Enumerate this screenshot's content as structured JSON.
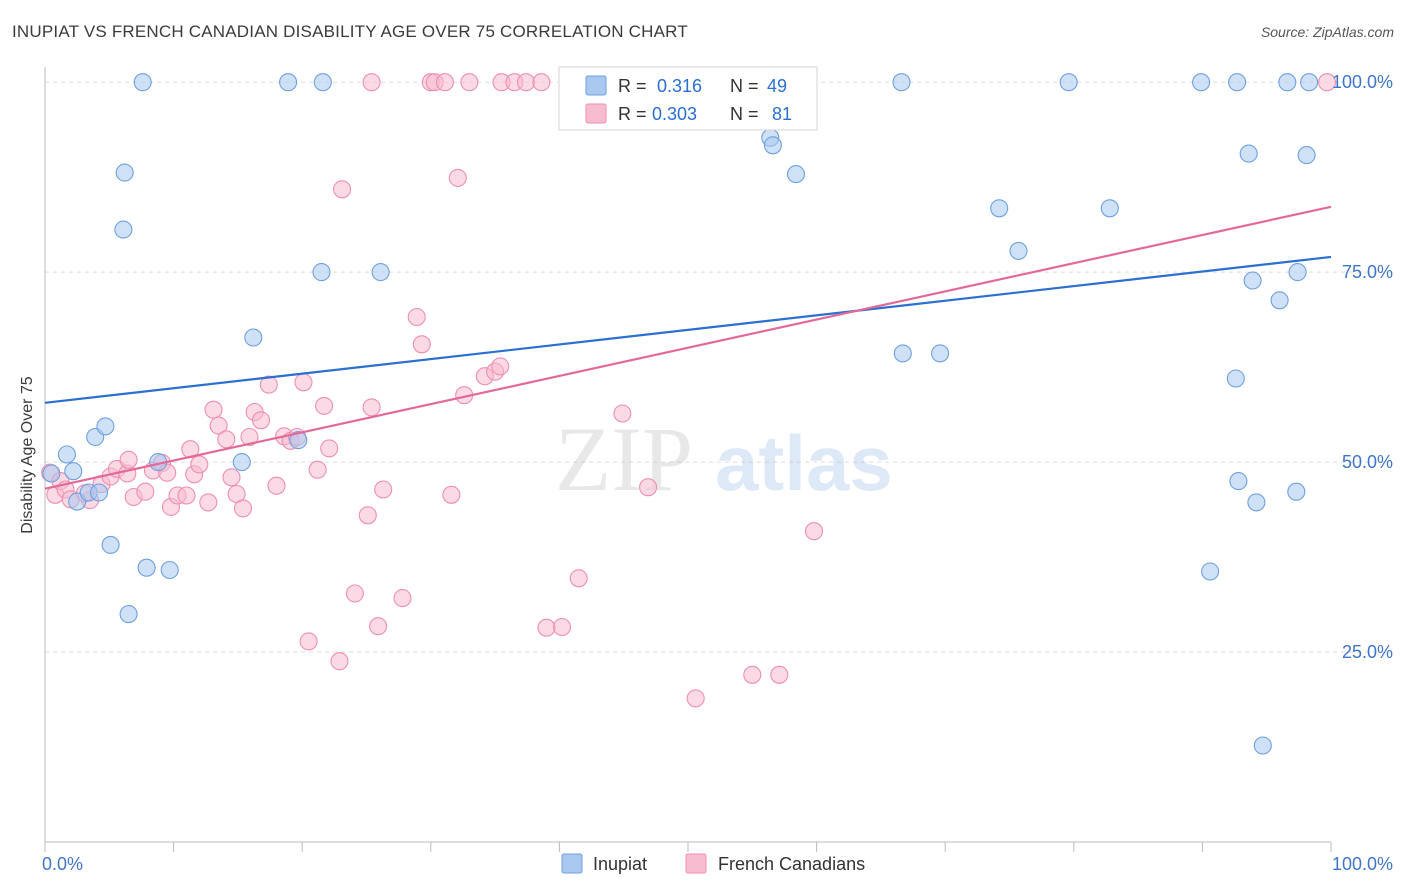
{
  "title": "INUPIAT VS FRENCH CANADIAN DISABILITY AGE OVER 75 CORRELATION CHART",
  "source": "Source: ZipAtlas.com",
  "watermark": {
    "zip": "ZIP",
    "atlas": "atlas"
  },
  "colors": {
    "blue_fill": "#a8c8f0",
    "blue_stroke": "#6fa0e0",
    "blue_line": "#2b6fd0",
    "pink_fill": "#f7bcd0",
    "pink_stroke": "#ee8fb0",
    "pink_line": "#e36a98",
    "axis_value": "#3f76c8",
    "grid": "#dddddd"
  },
  "legend": {
    "rows": [
      {
        "r_label": "R =",
        "r_value": "0.316",
        "n_label": "N =",
        "n_value": "49"
      },
      {
        "r_label": "R =",
        "r_value": "0.303",
        "n_label": "N =",
        "n_value": "81"
      }
    ]
  },
  "bottom_legend": {
    "items": [
      "Inupiat",
      "French Canadians"
    ]
  },
  "chart_data": {
    "type": "scatter",
    "title": "INUPIAT VS FRENCH CANADIAN DISABILITY AGE OVER 75 CORRELATION CHART",
    "xlabel": "",
    "ylabel": "Disability Age Over 75",
    "xlim": [
      0,
      100
    ],
    "ylim": [
      0,
      102
    ],
    "x_tick_labels": [
      "0.0%",
      "100.0%"
    ],
    "y_tick_labels": [
      "25.0%",
      "50.0%",
      "75.0%",
      "100.0%"
    ],
    "y_ticks": [
      25,
      50,
      75,
      100
    ],
    "grid": true,
    "series": [
      {
        "name": "Inupiat",
        "color": "blue",
        "trend": {
          "x": [
            0,
            100
          ],
          "y": [
            57.8,
            77.0
          ]
        },
        "points": [
          [
            0.5,
            48.5
          ],
          [
            1.7,
            51.0
          ],
          [
            2.2,
            48.8
          ],
          [
            2.5,
            44.8
          ],
          [
            3.4,
            46.0
          ],
          [
            3.9,
            53.3
          ],
          [
            4.2,
            46.0
          ],
          [
            4.7,
            54.7
          ],
          [
            5.1,
            39.1
          ],
          [
            6.1,
            80.6
          ],
          [
            6.2,
            88.1
          ],
          [
            7.6,
            100.0
          ],
          [
            7.9,
            36.1
          ],
          [
            6.5,
            30.0
          ],
          [
            9.7,
            35.8
          ],
          [
            8.8,
            50.0
          ],
          [
            15.3,
            50.0
          ],
          [
            16.2,
            66.4
          ],
          [
            18.9,
            100.0
          ],
          [
            21.6,
            100.0
          ],
          [
            21.5,
            75.0
          ],
          [
            26.1,
            75.0
          ],
          [
            19.7,
            52.9
          ],
          [
            52.4,
            95.6
          ],
          [
            56.4,
            92.7
          ],
          [
            56.6,
            91.7
          ],
          [
            58.4,
            87.9
          ],
          [
            66.7,
            64.3
          ],
          [
            69.6,
            64.3
          ],
          [
            74.2,
            83.4
          ],
          [
            75.7,
            77.8
          ],
          [
            79.6,
            100.0
          ],
          [
            82.8,
            83.4
          ],
          [
            89.9,
            100.0
          ],
          [
            90.6,
            35.6
          ],
          [
            92.6,
            61.0
          ],
          [
            92.8,
            47.5
          ],
          [
            93.6,
            90.6
          ],
          [
            93.9,
            73.9
          ],
          [
            94.2,
            44.7
          ],
          [
            96.6,
            100.0
          ],
          [
            97.4,
            75.0
          ],
          [
            96.0,
            71.3
          ],
          [
            97.3,
            46.1
          ],
          [
            98.3,
            100.0
          ],
          [
            98.1,
            90.4
          ],
          [
            94.7,
            12.7
          ],
          [
            66.6,
            100.0
          ],
          [
            92.7,
            100.0
          ]
        ]
      },
      {
        "name": "French Canadians",
        "color": "pink",
        "trend": {
          "x": [
            0,
            100
          ],
          "y": [
            46.5,
            83.6
          ]
        },
        "points": [
          [
            0.4,
            48.6
          ],
          [
            0.8,
            45.7
          ],
          [
            1.2,
            47.5
          ],
          [
            1.6,
            46.4
          ],
          [
            2.0,
            45.1
          ],
          [
            3.5,
            45.0
          ],
          [
            4.4,
            47.1
          ],
          [
            5.1,
            48.1
          ],
          [
            5.6,
            49.1
          ],
          [
            6.4,
            48.5
          ],
          [
            6.5,
            50.3
          ],
          [
            6.9,
            45.4
          ],
          [
            7.8,
            46.1
          ],
          [
            8.4,
            48.9
          ],
          [
            9.1,
            49.9
          ],
          [
            9.5,
            48.6
          ],
          [
            9.8,
            44.1
          ],
          [
            10.3,
            45.6
          ],
          [
            11.0,
            45.6
          ],
          [
            11.3,
            51.7
          ],
          [
            11.6,
            48.4
          ],
          [
            12.0,
            49.7
          ],
          [
            12.7,
            44.7
          ],
          [
            13.1,
            56.9
          ],
          [
            13.5,
            54.8
          ],
          [
            14.1,
            53.0
          ],
          [
            14.5,
            48.0
          ],
          [
            14.9,
            45.8
          ],
          [
            15.4,
            43.9
          ],
          [
            15.9,
            53.3
          ],
          [
            16.3,
            56.6
          ],
          [
            16.8,
            55.5
          ],
          [
            17.4,
            60.2
          ],
          [
            18.0,
            46.9
          ],
          [
            18.6,
            53.4
          ],
          [
            19.1,
            52.8
          ],
          [
            19.6,
            53.3
          ],
          [
            20.1,
            60.5
          ],
          [
            20.5,
            26.4
          ],
          [
            21.2,
            49.0
          ],
          [
            21.7,
            57.4
          ],
          [
            22.1,
            51.8
          ],
          [
            22.9,
            23.8
          ],
          [
            23.1,
            85.9
          ],
          [
            24.1,
            32.7
          ],
          [
            25.1,
            43.0
          ],
          [
            25.4,
            57.2
          ],
          [
            25.9,
            28.4
          ],
          [
            26.3,
            46.4
          ],
          [
            27.8,
            32.1
          ],
          [
            28.9,
            69.1
          ],
          [
            29.3,
            65.5
          ],
          [
            30.0,
            100.0
          ],
          [
            30.3,
            100.0
          ],
          [
            31.6,
            45.7
          ],
          [
            32.1,
            87.4
          ],
          [
            32.6,
            58.8
          ],
          [
            33.0,
            100.0
          ],
          [
            34.2,
            61.3
          ],
          [
            35.0,
            61.9
          ],
          [
            35.4,
            62.6
          ],
          [
            35.5,
            100.0
          ],
          [
            36.5,
            100.0
          ],
          [
            37.4,
            100.0
          ],
          [
            39.0,
            28.2
          ],
          [
            40.2,
            28.3
          ],
          [
            41.0,
            100.0
          ],
          [
            41.5,
            34.7
          ],
          [
            44.9,
            56.4
          ],
          [
            46.9,
            46.7
          ],
          [
            50.6,
            18.9
          ],
          [
            55.0,
            22.0
          ],
          [
            57.1,
            22.0
          ],
          [
            59.8,
            40.9
          ],
          [
            25.4,
            100.0
          ],
          [
            31.1,
            100.0
          ],
          [
            38.6,
            100.0
          ],
          [
            42.1,
            100.0
          ],
          [
            57.3,
            100.0
          ],
          [
            99.7,
            100.0
          ],
          [
            3.1,
            45.9
          ]
        ]
      }
    ]
  }
}
